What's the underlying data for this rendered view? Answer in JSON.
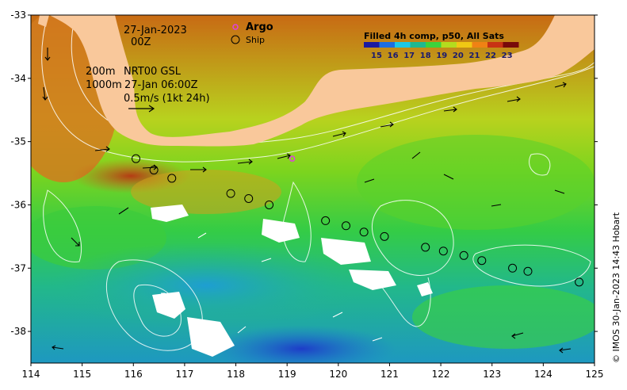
{
  "map": {
    "date_line": "27-Jan-2023",
    "time_line": "00Z",
    "depth_200": "200m",
    "depth_1000": "1000m",
    "product": "NRT00 GSL",
    "product_time": "27-Jan 06:00Z",
    "velocity_scale": "0.5m/s (1kt 24h)",
    "legend": {
      "argo": "Argo",
      "ship": "Ship"
    },
    "credit": "© IMOS 30-Jan-2023 14:43 Hobart",
    "land_color": "#f9c89b",
    "argo_color": "#e040e0"
  },
  "colorbar": {
    "title": "Filled 4h comp, p50, All Sats",
    "labels": [
      "15",
      "16",
      "17",
      "18",
      "19",
      "20",
      "21",
      "22",
      "23"
    ],
    "colors": [
      "#1a1aa0",
      "#1e6ee0",
      "#1ec8e6",
      "#20b890",
      "#3cd23c",
      "#b4dc1e",
      "#f0c814",
      "#f08214",
      "#c83214",
      "#780a0a"
    ]
  },
  "axes": {
    "x_ticks": [
      "114",
      "115",
      "116",
      "117",
      "118",
      "119",
      "120",
      "121",
      "122",
      "123",
      "124",
      "125"
    ],
    "y_ticks": [
      "-33",
      "-34",
      "-35",
      "-36",
      "-37",
      "-38"
    ]
  },
  "chart_data": {
    "type": "heatmap",
    "title": "Filled 4h comp, p50, All Sats",
    "xlim": [
      114,
      125
    ],
    "ylim": [
      -38.5,
      -33
    ],
    "colorbar_range": [
      15,
      23
    ],
    "argo_floats": [
      {
        "lon": 119.1,
        "lat": -35.27
      }
    ],
    "ship_track": [
      {
        "lon": 116.05,
        "lat": -35.27
      },
      {
        "lon": 116.4,
        "lat": -35.45
      },
      {
        "lon": 116.75,
        "lat": -35.58
      },
      {
        "lon": 117.9,
        "lat": -35.82
      },
      {
        "lon": 118.25,
        "lat": -35.9
      },
      {
        "lon": 118.65,
        "lat": -36.0
      },
      {
        "lon": 119.75,
        "lat": -36.25
      },
      {
        "lon": 120.15,
        "lat": -36.33
      },
      {
        "lon": 120.5,
        "lat": -36.43
      },
      {
        "lon": 120.9,
        "lat": -36.5
      },
      {
        "lon": 121.7,
        "lat": -36.67
      },
      {
        "lon": 122.05,
        "lat": -36.73
      },
      {
        "lon": 122.45,
        "lat": -36.8
      },
      {
        "lon": 122.8,
        "lat": -36.88
      },
      {
        "lon": 123.4,
        "lat": -37.0
      },
      {
        "lon": 123.7,
        "lat": -37.05
      },
      {
        "lon": 124.7,
        "lat": -37.22
      }
    ]
  }
}
